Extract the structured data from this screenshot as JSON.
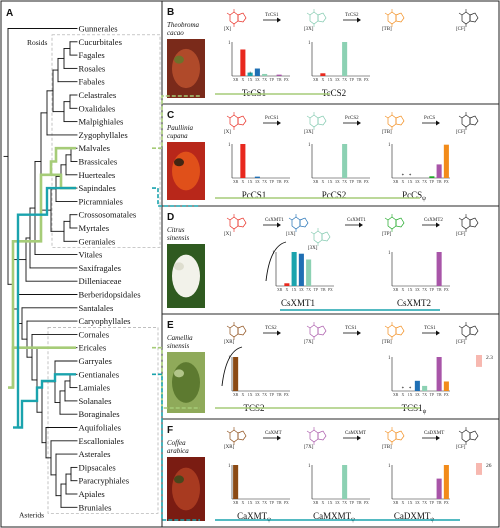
{
  "panel_letters": [
    "A",
    "B",
    "C",
    "D",
    "E",
    "F"
  ],
  "tree": {
    "clade_labels": {
      "rosids": "Rosids",
      "asterids": "Asterids"
    },
    "taxa": [
      "Gunnerales",
      "Cucurbitales",
      "Fagales",
      "Rosales",
      "Fabales",
      "Celastrales",
      "Oxalidales",
      "Malpighiales",
      "Zygophyllales",
      "Malvales",
      "Brassicales",
      "Huerteales",
      "Sapindales",
      "Picramniales",
      "Crossosomatales",
      "Myrtales",
      "Geraniales",
      "Vitales",
      "Saxifragales",
      "Dilleniaceae",
      "Berberidopsidales",
      "Santalales",
      "Caryophyllales",
      "Cornales",
      "Ericales",
      "Garryales",
      "Gentianales",
      "Lamiales",
      "Solanales",
      "Boraginales",
      "Aquifoliales",
      "Escalloniales",
      "Asterales",
      "Dipsacales",
      "Paracryphiales",
      "Apiales",
      "Bruniales"
    ]
  },
  "bar_x_labels": [
    "XR",
    "X",
    "1X",
    "3X",
    "7X",
    "TP",
    "TB",
    "PX"
  ],
  "colors": {
    "X": "#e8281e",
    "3X": "#1f6fb4",
    "7X": "#8cd1b3",
    "TB": "#a855a8",
    "TP": "#1da825",
    "CF": "#f28b1a",
    "XR": "#8b4a14",
    "green_line": "#a6cc78",
    "teal_line": "#1aa3ad"
  },
  "panels": [
    {
      "letter": "B",
      "species": [
        "Theobroma",
        "cacao"
      ],
      "compounds": [
        "[X]",
        "[3X]",
        "[TB]",
        "[CF]"
      ],
      "enzymes": [
        "TcCS1",
        "TcCS2"
      ],
      "genes": [
        "TcCS1",
        "TcCS2"
      ],
      "photo": "cacao-pod",
      "charts": [
        {
          "name": "TcCS1",
          "ymax_label": "1",
          "values": [
            0,
            0.78,
            0.1,
            0.22,
            0.06,
            0,
            0.04,
            0
          ],
          "err": [
            0,
            0,
            0.03,
            0,
            0,
            0,
            0,
            0
          ]
        },
        {
          "name": "TcCS2",
          "ymax_label": "1",
          "values": [
            0,
            0.08,
            0,
            0,
            1.0,
            0,
            0,
            0
          ]
        }
      ]
    },
    {
      "letter": "C",
      "species": [
        "Paullinia",
        "cupana"
      ],
      "compounds": [
        "[X]",
        "[3X]",
        "[TB]",
        "[CF]"
      ],
      "enzymes": [
        "PcCS1",
        "PcCS2",
        "PcCS"
      ],
      "genes": [
        "PcCS1",
        "PcCS2",
        "PcCS"
      ],
      "gene_subscripts": [
        "",
        "",
        "ψ"
      ],
      "photo": "guarana-fruits",
      "charts": [
        {
          "name": "PcCS1",
          "ymax_label": "1",
          "values": [
            0,
            1.0,
            0,
            0.04,
            0,
            0,
            0,
            0
          ]
        },
        {
          "name": "PcCS2",
          "ymax_label": "1",
          "values": [
            0,
            0,
            0,
            0,
            1.0,
            0,
            0,
            0
          ]
        },
        {
          "name": "PcCS",
          "ymax_label": "1",
          "values": [
            0,
            0,
            0,
            0,
            0,
            0.05,
            0.4,
            0.98
          ],
          "stars": [
            1,
            2
          ]
        }
      ]
    },
    {
      "letter": "D",
      "species": [
        "Citrus",
        "sinensis"
      ],
      "compounds": [
        "[X]",
        "[1X]",
        "[3X]",
        "[TP]",
        "[CF]"
      ],
      "enzymes": [
        "CsXMT1",
        "CsXMT1",
        "CsXMT2"
      ],
      "genes": [
        "CsXMT1",
        "CsXMT2"
      ],
      "photo": "citrus-flower",
      "charts": [
        {
          "name": "CsXMT1",
          "ymax_label": "1",
          "values": [
            0,
            0.08,
            1.0,
            0.95,
            0.78,
            0,
            0,
            0
          ]
        },
        {
          "name": "CsXMT2",
          "ymax_label": "1",
          "values": [
            0,
            0,
            0,
            0,
            0,
            0,
            1.0,
            0
          ]
        }
      ]
    },
    {
      "letter": "E",
      "species": [
        "Camellia",
        "sinensis"
      ],
      "compounds": [
        "[XR]",
        "[7X]",
        "[TB]",
        "[CF]"
      ],
      "enzymes": [
        "TCS2",
        "TCS1",
        "TCS1"
      ],
      "genes": [
        "TCS2",
        "TCS1"
      ],
      "gene_subscripts": [
        "",
        "ψ"
      ],
      "photo": "tea-leaves",
      "annotation": "2.3",
      "charts": [
        {
          "name": "TCS2",
          "ymax_label": "1",
          "values": [
            1.0,
            0,
            0,
            0,
            0,
            0,
            0,
            0
          ]
        },
        {
          "name": "TCS1",
          "ymax_label": "1",
          "values": [
            0,
            0,
            0,
            0.3,
            0.15,
            0,
            1.0,
            0.28
          ],
          "stars": [
            1,
            2
          ]
        }
      ]
    },
    {
      "letter": "F",
      "species": [
        "Coffea",
        "arabica"
      ],
      "compounds": [
        "[XR]",
        "[7X]",
        "[TB]",
        "[CF]"
      ],
      "enzymes": [
        "CaXMT",
        "CaMXMT",
        "CaDXMT"
      ],
      "genes": [
        "CaXMT",
        "CaMXMT",
        "CaDXMT"
      ],
      "gene_subscripts": [
        "ψ",
        "ψ",
        "ψ"
      ],
      "photo": "coffee-cherries",
      "annotation": "26",
      "charts": [
        {
          "name": "CaXMT",
          "ymax_label": "1",
          "values": [
            1.0,
            0,
            0,
            0,
            0,
            0,
            0,
            0
          ]
        },
        {
          "name": "CaMXMT",
          "ymax_label": "1",
          "values": [
            0,
            0,
            0,
            0,
            1.0,
            0,
            0,
            0
          ]
        },
        {
          "name": "CaDXMT",
          "ymax_label": "1",
          "values": [
            0,
            0,
            0,
            0,
            0,
            0,
            0.6,
            1.0
          ]
        }
      ]
    }
  ]
}
